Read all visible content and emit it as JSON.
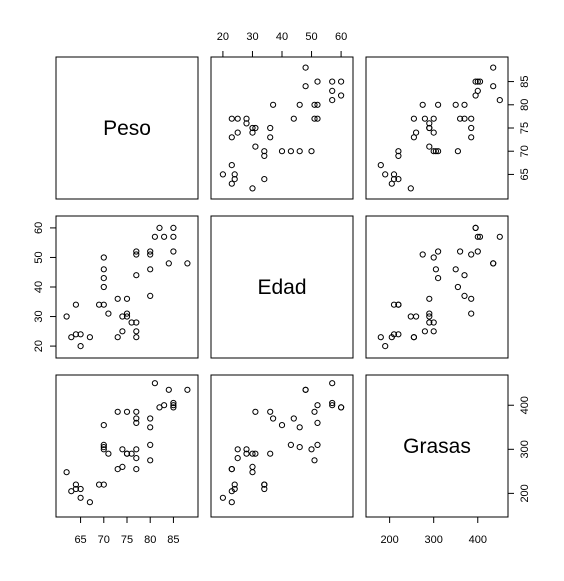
{
  "chart_data": {
    "type": "scatter",
    "kind": "scatterplot-matrix",
    "grid": false,
    "point_marker": "open-circle",
    "variables": [
      {
        "name": "Peso",
        "lim": [
          61,
          89
        ],
        "ticks": [
          65,
          70,
          75,
          80,
          85
        ],
        "tick_labels": [
          "65",
          "70",
          "75",
          "80",
          "85"
        ]
      },
      {
        "name": "Edad",
        "lim": [
          18,
          62
        ],
        "ticks": [
          20,
          30,
          40,
          50,
          60
        ],
        "tick_labels": [
          "20",
          "30",
          "40",
          "50",
          "60"
        ]
      },
      {
        "name": "Grasas",
        "lim": [
          160,
          455
        ],
        "ticks": [
          200,
          300,
          400
        ],
        "tick_labels": [
          "200",
          "300",
          "400"
        ]
      }
    ],
    "observations": [
      {
        "Peso": 62,
        "Edad": 30,
        "Grasas": 248
      },
      {
        "Peso": 63,
        "Edad": 23,
        "Grasas": 205
      },
      {
        "Peso": 64,
        "Edad": 24,
        "Grasas": 220
      },
      {
        "Peso": 64,
        "Edad": 34,
        "Grasas": 210
      },
      {
        "Peso": 65,
        "Edad": 20,
        "Grasas": 190
      },
      {
        "Peso": 65,
        "Edad": 24,
        "Grasas": 210
      },
      {
        "Peso": 67,
        "Edad": 23,
        "Grasas": 180
      },
      {
        "Peso": 69,
        "Edad": 34,
        "Grasas": 220
      },
      {
        "Peso": 70,
        "Edad": 34,
        "Grasas": 220
      },
      {
        "Peso": 70,
        "Edad": 40,
        "Grasas": 355
      },
      {
        "Peso": 70,
        "Edad": 43,
        "Grasas": 310
      },
      {
        "Peso": 70,
        "Edad": 46,
        "Grasas": 305
      },
      {
        "Peso": 70,
        "Edad": 50,
        "Grasas": 300
      },
      {
        "Peso": 71,
        "Edad": 31,
        "Grasas": 290
      },
      {
        "Peso": 73,
        "Edad": 23,
        "Grasas": 255
      },
      {
        "Peso": 73,
        "Edad": 36,
        "Grasas": 385
      },
      {
        "Peso": 74,
        "Edad": 25,
        "Grasas": 300
      },
      {
        "Peso": 74,
        "Edad": 30,
        "Grasas": 260
      },
      {
        "Peso": 75,
        "Edad": 30,
        "Grasas": 290
      },
      {
        "Peso": 75,
        "Edad": 31,
        "Grasas": 385
      },
      {
        "Peso": 75,
        "Edad": 36,
        "Grasas": 290
      },
      {
        "Peso": 76,
        "Edad": 28,
        "Grasas": 290
      },
      {
        "Peso": 77,
        "Edad": 23,
        "Grasas": 255
      },
      {
        "Peso": 77,
        "Edad": 25,
        "Grasas": 280
      },
      {
        "Peso": 77,
        "Edad": 28,
        "Grasas": 300
      },
      {
        "Peso": 77,
        "Edad": 44,
        "Grasas": 370
      },
      {
        "Peso": 77,
        "Edad": 51,
        "Grasas": 385
      },
      {
        "Peso": 77,
        "Edad": 52,
        "Grasas": 360
      },
      {
        "Peso": 80,
        "Edad": 37,
        "Grasas": 370
      },
      {
        "Peso": 80,
        "Edad": 46,
        "Grasas": 350
      },
      {
        "Peso": 80,
        "Edad": 51,
        "Grasas": 275
      },
      {
        "Peso": 80,
        "Edad": 52,
        "Grasas": 310
      },
      {
        "Peso": 81,
        "Edad": 57,
        "Grasas": 450
      },
      {
        "Peso": 82,
        "Edad": 60,
        "Grasas": 395
      },
      {
        "Peso": 83,
        "Edad": 57,
        "Grasas": 400
      },
      {
        "Peso": 84,
        "Edad": 48,
        "Grasas": 435
      },
      {
        "Peso": 85,
        "Edad": 52,
        "Grasas": 400
      },
      {
        "Peso": 85,
        "Edad": 57,
        "Grasas": 405
      },
      {
        "Peso": 85,
        "Edad": 60,
        "Grasas": 395
      },
      {
        "Peso": 88,
        "Edad": 48,
        "Grasas": 435
      }
    ]
  }
}
